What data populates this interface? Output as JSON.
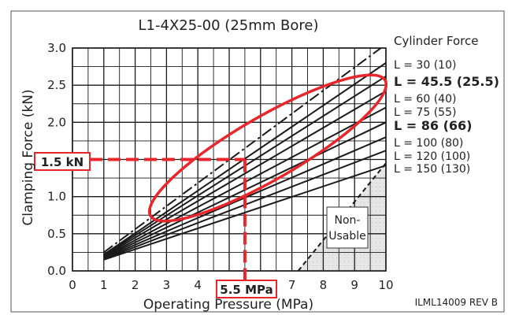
{
  "chart_data": {
    "type": "line",
    "title": "L1-4X25-00 (25mm Bore)",
    "xlabel": "Operating Pressure (MPa)",
    "ylabel": "Clamping Force (kN)",
    "xlim": [
      0,
      10
    ],
    "ylim": [
      0,
      3.0
    ],
    "x_ticks": [
      "0",
      "1",
      "2",
      "3",
      "4",
      "5",
      "6",
      "7",
      "8",
      "9",
      "10"
    ],
    "y_ticks": [
      "0.0",
      "0.5",
      "1.0",
      "1.5",
      "2.0",
      "2.5",
      "3.0"
    ],
    "grid": true,
    "legend_title": "Cylinder Force",
    "legend_position": "right",
    "series": [
      {
        "name": "L = 30 (10)",
        "highlight": false,
        "points": [
          [
            1,
            0.22
          ],
          [
            10,
            2.8
          ]
        ]
      },
      {
        "name": "L = 45.5 (25.5)",
        "highlight": true,
        "points": [
          [
            1,
            0.21
          ],
          [
            10,
            2.62
          ]
        ]
      },
      {
        "name": "L = 60 (40)",
        "highlight": false,
        "points": [
          [
            1,
            0.2
          ],
          [
            10,
            2.42
          ]
        ]
      },
      {
        "name": "L = 75 (55)",
        "highlight": false,
        "points": [
          [
            1,
            0.19
          ],
          [
            10,
            2.2
          ]
        ]
      },
      {
        "name": "L = 86 (66)",
        "highlight": true,
        "points": [
          [
            1,
            0.18
          ],
          [
            10,
            2.0
          ]
        ]
      },
      {
        "name": "L = 100 (80)",
        "highlight": false,
        "points": [
          [
            1,
            0.17
          ],
          [
            10,
            1.8
          ]
        ]
      },
      {
        "name": "L = 120 (100)",
        "highlight": false,
        "points": [
          [
            1,
            0.16
          ],
          [
            10,
            1.62
          ]
        ]
      },
      {
        "name": "L = 150 (130)",
        "highlight": false,
        "points": [
          [
            1,
            0.15
          ],
          [
            10,
            1.42
          ]
        ]
      }
    ],
    "cylinder_force_line": [
      [
        1,
        0.25
      ],
      [
        10,
        3.05
      ]
    ],
    "non_usable_boundary": [
      [
        7.2,
        0
      ],
      [
        10,
        1.45
      ]
    ],
    "non_usable_label": [
      "Non-",
      "Usable"
    ],
    "example": {
      "pressure": 5.5,
      "force": 1.5,
      "x_label": "5.5 MPa",
      "y_label": "1.5 kN"
    },
    "footer": "ILML14009 REV B"
  },
  "colors": {
    "highlight": "#e8262c",
    "curve": "#1a1a1a",
    "grid": "#1a1a1a",
    "nonusable": "#dcdcdc"
  }
}
